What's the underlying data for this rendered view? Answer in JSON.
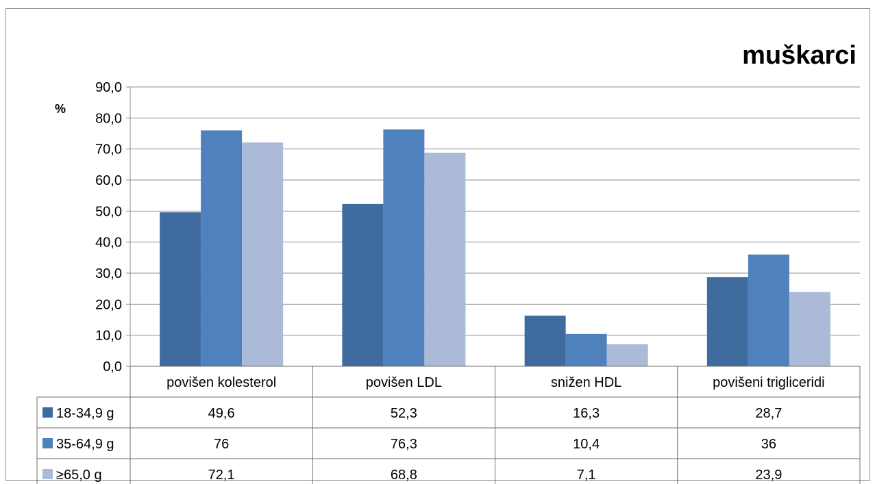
{
  "chart_data": {
    "type": "bar",
    "title": "muškarci",
    "ylabel": "%",
    "ylim": [
      0,
      90
    ],
    "yticks": [
      "0,0",
      "10,0",
      "20,0",
      "30,0",
      "40,0",
      "50,0",
      "60,0",
      "70,0",
      "80,0",
      "90,0"
    ],
    "grid": true,
    "legend": "data-table",
    "categories": [
      "povišen kolesterol",
      "povišen LDL",
      "snižen HDL",
      "povišeni trigliceridi"
    ],
    "series": [
      {
        "name": "18-34,9 g",
        "color": "#3f6b9e",
        "values": [
          49.6,
          52.3,
          16.3,
          28.7
        ],
        "labels": [
          "49,6",
          "52,3",
          "16,3",
          "28,7"
        ]
      },
      {
        "name": "35-64,9 g",
        "color": "#4f81bd",
        "values": [
          76,
          76.3,
          10.4,
          36
        ],
        "labels": [
          "76",
          "76,3",
          "10,4",
          "36"
        ]
      },
      {
        "name": "≥65,0 g",
        "color": "#aabad7",
        "values": [
          72.1,
          68.8,
          7.1,
          23.9
        ],
        "labels": [
          "72,1",
          "68,8",
          "7,1",
          "23,9"
        ]
      }
    ]
  }
}
